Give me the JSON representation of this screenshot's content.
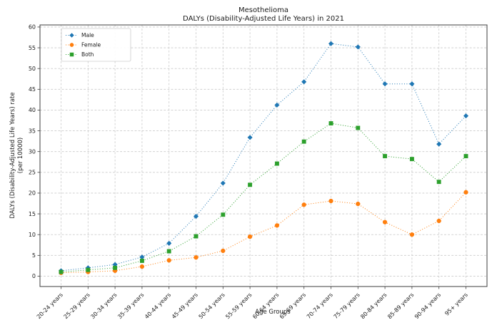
{
  "figure": {
    "title_line1": "Mesothelioma",
    "title_line2": "DALYs (Disability-Adjusted Life Years) in 2021",
    "xlabel": "Age Groups",
    "ylabel_line1": "DALYs (Disability-Adjusted Life Years) rate",
    "ylabel_line2": "(per 10000)"
  },
  "chart_data": {
    "type": "line",
    "title": "Mesothelioma\nDALYs (Disability-Adjusted Life Years) in 2021",
    "xlabel": "Age Groups",
    "ylabel": "DALYs (Disability-Adjusted Life Years) rate\n(per 10000)",
    "categories": [
      "20-24 years",
      "25-29 years",
      "30-34 years",
      "35-39 years",
      "40-44 years",
      "45-49 years",
      "50-54 years",
      "55-59 years",
      "60-64 years",
      "65-69 years",
      "70-74 years",
      "75-79 years",
      "80-84 years",
      "85-89 years",
      "90-94 years",
      "95+ years"
    ],
    "series": [
      {
        "name": "Male",
        "color": "#1f77b4",
        "marker": "diamond",
        "values": [
          1.3,
          2.0,
          2.8,
          4.6,
          7.9,
          14.4,
          22.4,
          33.4,
          41.2,
          46.8,
          56.0,
          55.2,
          46.3,
          46.3,
          31.8,
          38.6
        ]
      },
      {
        "name": "Female",
        "color": "#ff7f0e",
        "marker": "circle",
        "values": [
          0.8,
          1.0,
          1.3,
          2.3,
          3.8,
          4.5,
          6.1,
          9.5,
          12.2,
          17.2,
          18.1,
          17.4,
          13.0,
          10.0,
          13.3,
          20.2
        ]
      },
      {
        "name": "Both",
        "color": "#2ca02c",
        "marker": "square",
        "values": [
          1.0,
          1.5,
          2.0,
          3.7,
          6.0,
          9.6,
          14.8,
          22.0,
          27.1,
          32.4,
          36.8,
          35.7,
          28.9,
          28.2,
          22.7,
          28.9
        ]
      }
    ],
    "yticks": [
      0,
      5,
      10,
      15,
      20,
      25,
      30,
      35,
      40,
      45,
      50,
      55,
      60
    ],
    "ylim": [
      -2.5,
      60.5
    ],
    "grid": true,
    "line_style": "dotted",
    "legend_position": "upper-left"
  },
  "colors": {
    "background": "#ffffff",
    "grid": "#c9c9c9",
    "spine": "#3c3c3c",
    "text": "#1a1a1a"
  }
}
